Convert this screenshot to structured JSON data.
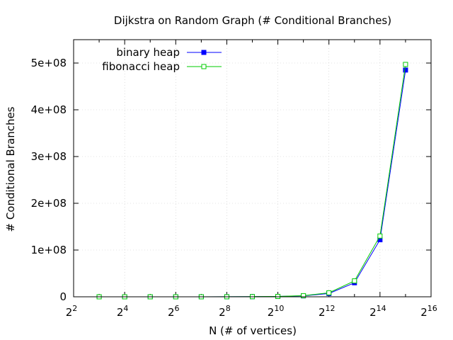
{
  "chart_data": {
    "type": "line",
    "title": "Dijkstra on Random Graph (# Conditional Branches)",
    "xlabel": "N (# of vertices)",
    "ylabel": "# Conditional Branches",
    "x_scale": "log2",
    "xlim": [
      4,
      65536
    ],
    "ylim": [
      0,
      550000000
    ],
    "x_ticks": [
      {
        "value": 4,
        "base": "2",
        "exp": "2"
      },
      {
        "value": 16,
        "base": "2",
        "exp": "4"
      },
      {
        "value": 64,
        "base": "2",
        "exp": "6"
      },
      {
        "value": 256,
        "base": "2",
        "exp": "8"
      },
      {
        "value": 1024,
        "base": "2",
        "exp": "10"
      },
      {
        "value": 4096,
        "base": "2",
        "exp": "12"
      },
      {
        "value": 16384,
        "base": "2",
        "exp": "14"
      },
      {
        "value": 65536,
        "base": "2",
        "exp": "16"
      }
    ],
    "y_ticks": [
      {
        "value": 0,
        "label": "0"
      },
      {
        "value": 100000000,
        "label": "1e+08"
      },
      {
        "value": 200000000,
        "label": "2e+08"
      },
      {
        "value": 300000000,
        "label": "3e+08"
      },
      {
        "value": 400000000,
        "label": "4e+08"
      },
      {
        "value": 500000000,
        "label": "5e+08"
      }
    ],
    "grid": true,
    "legend_position": "top-left",
    "x": [
      8,
      16,
      32,
      64,
      128,
      256,
      512,
      1024,
      2048,
      4096,
      8192,
      16384,
      32768
    ],
    "series": [
      {
        "name": "binary heap",
        "color": "#0000ff",
        "marker": "filled-square",
        "values": [
          1000,
          3000,
          8000,
          20000,
          50000,
          120000,
          300000,
          700000,
          2000000,
          7000000,
          30000000,
          122000000,
          485000000
        ]
      },
      {
        "name": "fibonacci heap",
        "color": "#00cc00",
        "marker": "open-square",
        "values": [
          1200,
          3500,
          9000,
          23000,
          60000,
          140000,
          350000,
          800000,
          2400000,
          8500000,
          34000000,
          130000000,
          497000000
        ]
      }
    ]
  }
}
